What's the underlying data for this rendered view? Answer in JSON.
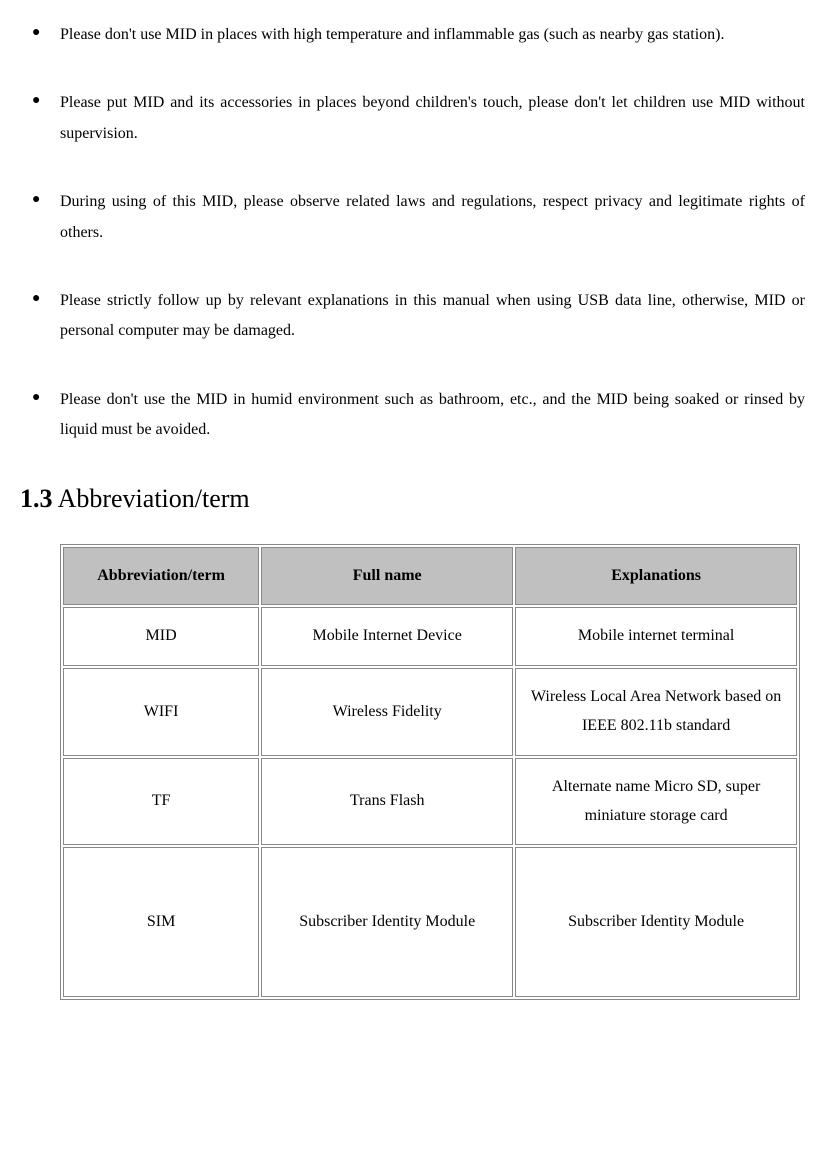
{
  "bullets": [
    "Please don't use MID in places with high temperature and inflammable gas (such as nearby gas station).",
    "Please put MID and its accessories in places beyond children's touch, please don't let children use MID without supervision.",
    "During using of this MID, please observe related laws and regulations, respect privacy and legitimate rights of others.",
    "Please strictly follow up by relevant explanations in this manual when using USB data line, otherwise, MID or personal computer may be damaged.",
    "Please don't use the MID in humid environment such as bathroom, etc., and the MID being soaked or rinsed by liquid must be avoided."
  ],
  "section": {
    "num": "1.3",
    "title": "Abbreviation/term"
  },
  "table": {
    "headers": [
      "Abbreviation/term",
      "Full name",
      "Explanations"
    ],
    "rows": [
      {
        "abbr": "MID",
        "full": "Mobile Internet Device",
        "expl": "Mobile internet terminal"
      },
      {
        "abbr": "WIFI",
        "full": "Wireless Fidelity",
        "expl": "Wireless Local Area Network based on IEEE 802.11b standard"
      },
      {
        "abbr": "TF",
        "full": "Trans Flash",
        "expl": "Alternate name Micro SD, super miniature storage card"
      },
      {
        "abbr": "SIM",
        "full": "Subscriber Identity Module",
        "expl": "Subscriber Identity Module"
      }
    ]
  }
}
